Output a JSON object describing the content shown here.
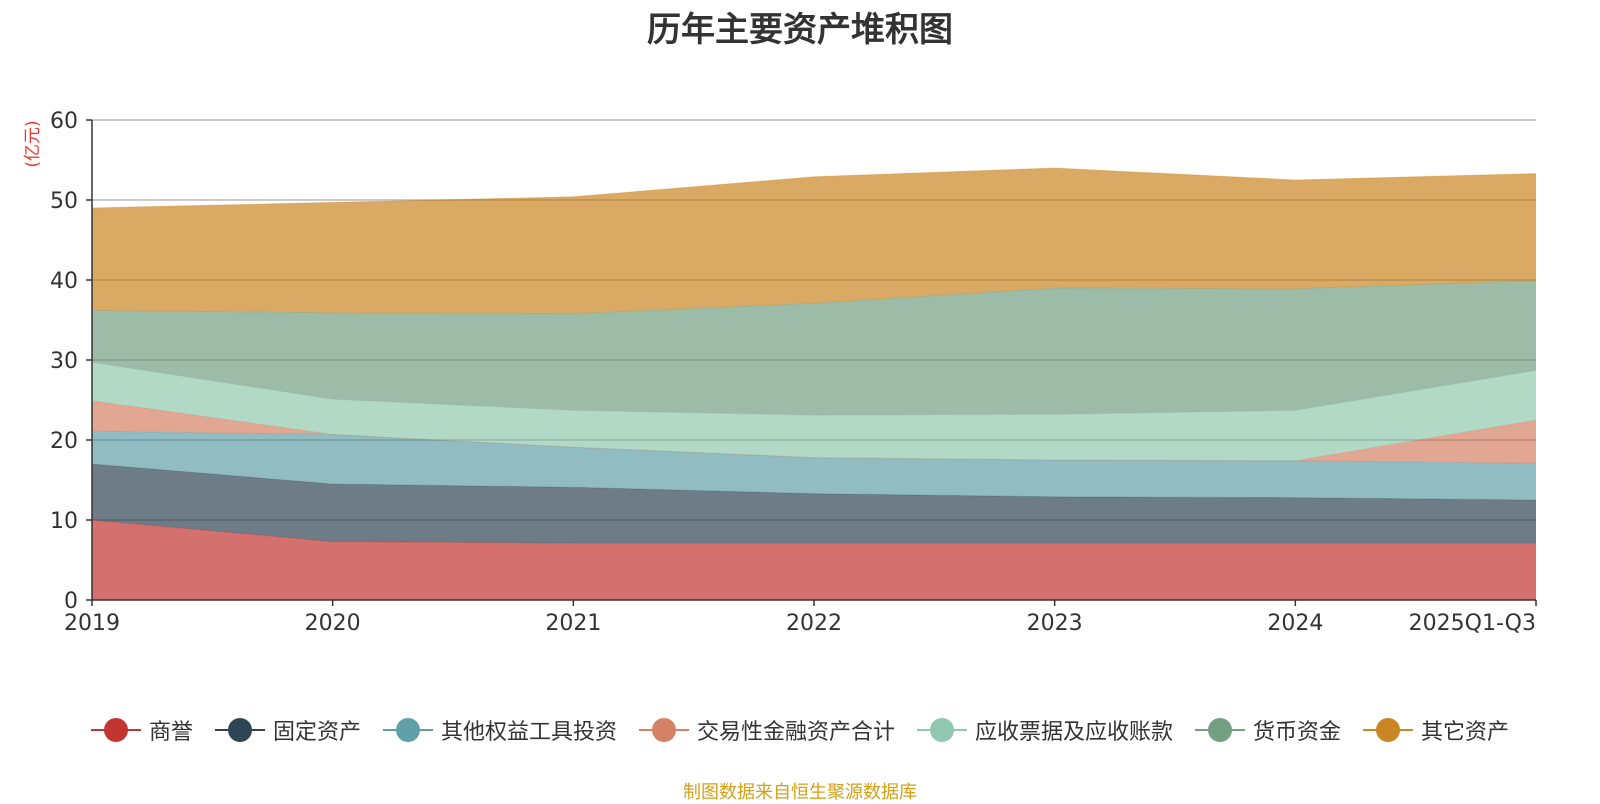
{
  "chart_data": {
    "type": "area",
    "stacked": true,
    "title": "历年主要资产堆积图",
    "ylabel": "(亿元)",
    "xlabel": "",
    "categories": [
      "2019",
      "2020",
      "2021",
      "2022",
      "2023",
      "2024",
      "2025Q1-Q3"
    ],
    "ylim": [
      0,
      60
    ],
    "yticks": [
      0,
      10,
      20,
      30,
      40,
      50,
      60
    ],
    "grid": true,
    "legend_position": "bottom",
    "series": [
      {
        "name": "商誉",
        "color": "#c23531",
        "values": [
          10.0,
          7.3,
          7.1,
          7.1,
          7.1,
          7.1,
          7.1
        ]
      },
      {
        "name": "固定资产",
        "color": "#2f4554",
        "values": [
          7.0,
          7.2,
          7.0,
          6.2,
          5.8,
          5.7,
          5.4
        ]
      },
      {
        "name": "其他权益工具投资",
        "color": "#61a0a8",
        "values": [
          4.1,
          6.2,
          5.0,
          4.5,
          4.6,
          4.6,
          4.6
        ]
      },
      {
        "name": "交易性金融资产合计",
        "color": "#d48265",
        "values": [
          3.8,
          0.0,
          0.0,
          0.0,
          0.0,
          0.0,
          5.4
        ]
      },
      {
        "name": "应收票据及应收账款",
        "color": "#91c7ae",
        "values": [
          4.8,
          4.4,
          4.6,
          5.3,
          5.7,
          6.3,
          6.2
        ]
      },
      {
        "name": "货币资金",
        "color": "#749f83",
        "values": [
          6.5,
          10.8,
          12.1,
          14.0,
          15.8,
          15.2,
          11.2
        ]
      },
      {
        "name": "其它资产",
        "color": "#ca8622",
        "values": [
          12.8,
          13.8,
          14.6,
          15.8,
          15.0,
          13.6,
          13.4
        ]
      }
    ]
  },
  "source": "制图数据来自恒生聚源数据库"
}
